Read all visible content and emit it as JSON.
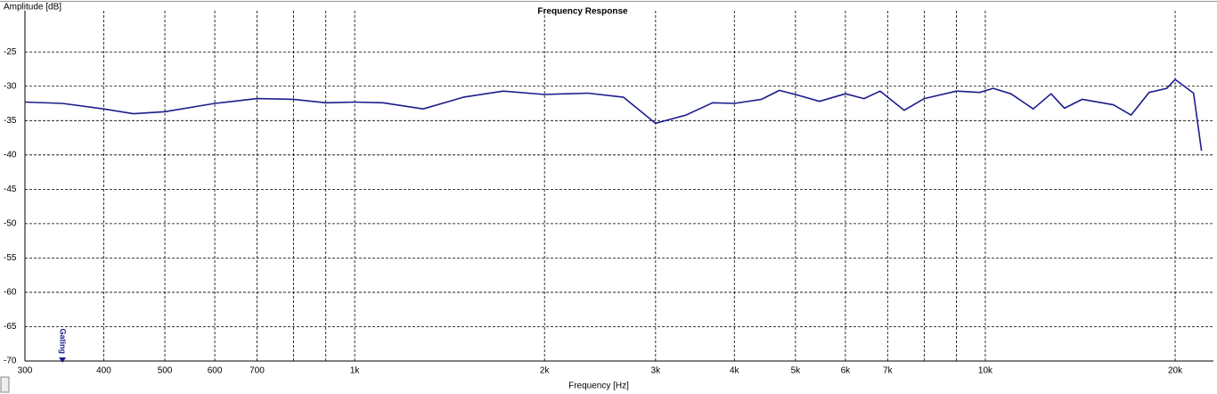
{
  "chart_data": {
    "type": "line",
    "title": "Frequency Response",
    "y_label": "Amplitude [dB]",
    "x_label": "Frequency [Hz]",
    "log_x": true,
    "grid": true,
    "xlim": [
      300,
      23000
    ],
    "ylim": [
      -70,
      -19
    ],
    "xticks": [
      300,
      400,
      500,
      600,
      700,
      {
        "value": 1000,
        "label": "1k"
      },
      {
        "value": 2000,
        "label": "2k"
      },
      {
        "value": 3000,
        "label": "3k"
      },
      {
        "value": 4000,
        "label": "4k"
      },
      {
        "value": 5000,
        "label": "5k"
      },
      {
        "value": 6000,
        "label": "6k"
      },
      {
        "value": 7000,
        "label": "7k"
      },
      {
        "value": 10000,
        "label": "10k"
      },
      {
        "value": 20000,
        "label": "20k"
      }
    ],
    "minor_xticks": [
      800,
      900,
      8000,
      9000
    ],
    "yticks": [
      -25,
      -30,
      -35,
      -40,
      -45,
      -50,
      -55,
      -60,
      -65,
      -70
    ],
    "annotations": [
      {
        "text": "Gating",
        "x": 344
      }
    ],
    "series": [
      {
        "color": "#1c1c8c",
        "x": [
          300,
          344,
          400,
          446,
          500,
          600,
          700,
          800,
          900,
          1000,
          1109,
          1284,
          1486,
          1720,
          2000,
          2343,
          2669,
          3000,
          3351,
          3694,
          4000,
          4419,
          4714,
          5000,
          5458,
          6000,
          6421,
          6811,
          7437,
          8000,
          9000,
          9800,
          10290,
          10980,
          11910,
          12710,
          13350,
          14250,
          15960,
          17030,
          18180,
          19400,
          20000,
          21390,
          22020
        ],
        "values": [
          -32.3,
          -32.5,
          -33.3,
          -34.0,
          -33.7,
          -32.5,
          -31.8,
          -31.9,
          -32.4,
          -32.3,
          -32.4,
          -33.3,
          -31.6,
          -30.7,
          -31.2,
          -31.0,
          -31.6,
          -35.4,
          -34.2,
          -32.4,
          -32.5,
          -31.9,
          -30.6,
          -31.2,
          -32.2,
          -31.1,
          -31.8,
          -30.7,
          -33.5,
          -31.8,
          -30.7,
          -30.9,
          -30.3,
          -31.1,
          -33.3,
          -31.1,
          -33.2,
          -31.9,
          -32.7,
          -34.2,
          -30.9,
          -30.3,
          -29.0,
          -31.0,
          -39.4
        ]
      }
    ]
  }
}
